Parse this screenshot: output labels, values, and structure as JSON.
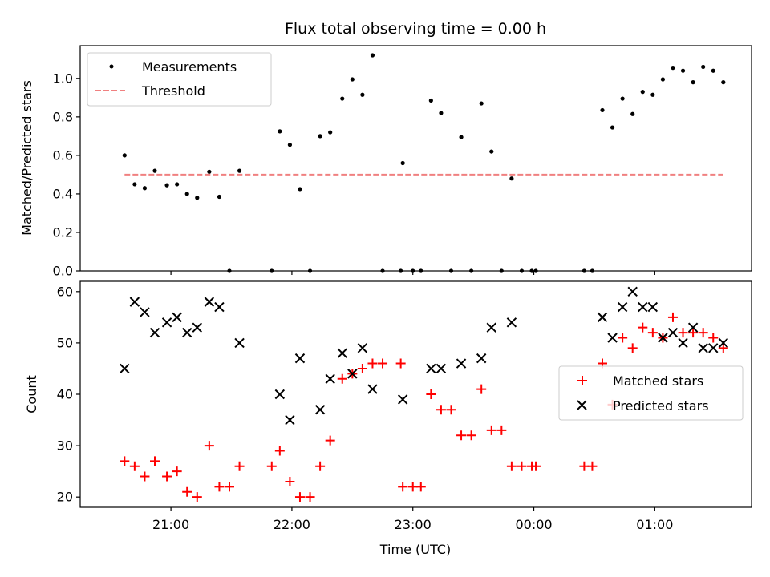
{
  "chart_data": [
    {
      "type": "scatter",
      "title": "Flux total observing time = 0.00 h",
      "xlabel": "",
      "ylabel": "Matched/Predicted stars",
      "ylim": [
        0,
        1.17
      ],
      "yticks": [
        "0.0",
        "0.2",
        "0.4",
        "0.6",
        "0.8",
        "1.0"
      ],
      "grid": false,
      "legend": "top-left",
      "series": [
        {
          "name": "Measurements",
          "marker": "dot",
          "color": "#000000",
          "points": [
            [
              "20:37",
              0.6
            ],
            [
              "20:42",
              0.45
            ],
            [
              "20:47",
              0.43
            ],
            [
              "20:52",
              0.52
            ],
            [
              "20:58",
              0.445
            ],
            [
              "21:03",
              0.45
            ],
            [
              "21:08",
              0.4
            ],
            [
              "21:13",
              0.38
            ],
            [
              "21:19",
              0.515
            ],
            [
              "21:24",
              0.385
            ],
            [
              "21:29",
              0.0
            ],
            [
              "21:34",
              0.52
            ],
            [
              "21:50",
              0.0
            ],
            [
              "21:54",
              0.725
            ],
            [
              "21:59",
              0.655
            ],
            [
              "22:04",
              0.425
            ],
            [
              "22:09",
              0.0
            ],
            [
              "22:14",
              0.7
            ],
            [
              "22:19",
              0.72
            ],
            [
              "22:25",
              0.895
            ],
            [
              "22:30",
              0.995
            ],
            [
              "22:35",
              0.915
            ],
            [
              "22:40",
              1.12
            ],
            [
              "22:45",
              0.0
            ],
            [
              "22:54",
              0.0
            ],
            [
              "22:55",
              0.56
            ],
            [
              "23:00",
              0.0
            ],
            [
              "23:04",
              0.0
            ],
            [
              "23:09",
              0.885
            ],
            [
              "23:14",
              0.82
            ],
            [
              "23:19",
              0.0
            ],
            [
              "23:24",
              0.695
            ],
            [
              "23:29",
              0.0
            ],
            [
              "23:34",
              0.87
            ],
            [
              "23:39",
              0.62
            ],
            [
              "23:44",
              0.0
            ],
            [
              "23:49",
              0.48
            ],
            [
              "23:54",
              0.0
            ],
            [
              "23:59",
              0.0
            ],
            [
              "00:01",
              0.0
            ],
            [
              "00:25",
              0.0
            ],
            [
              "00:29",
              0.0
            ],
            [
              "00:34",
              0.835
            ],
            [
              "00:39",
              0.745
            ],
            [
              "00:44",
              0.895
            ],
            [
              "00:49",
              0.815
            ],
            [
              "00:54",
              0.93
            ],
            [
              "00:59",
              0.915
            ],
            [
              "01:04",
              0.995
            ],
            [
              "01:09",
              1.055
            ],
            [
              "01:14",
              1.04
            ],
            [
              "01:19",
              0.98
            ],
            [
              "01:24",
              1.06
            ],
            [
              "01:29",
              1.04
            ],
            [
              "01:34",
              0.98
            ]
          ]
        },
        {
          "name": "Threshold",
          "marker": "dashed-line",
          "color": "#f08080",
          "points": [
            [
              "20:37",
              0.5
            ],
            [
              "01:34",
              0.5
            ]
          ]
        }
      ]
    },
    {
      "type": "scatter",
      "title": "",
      "xlabel": "Time (UTC)",
      "ylabel": "Count",
      "ylim": [
        18,
        62
      ],
      "yticks": [
        "20",
        "30",
        "40",
        "50",
        "60"
      ],
      "xticks": [
        "21:00",
        "22:00",
        "23:00",
        "00:00",
        "01:00"
      ],
      "grid": false,
      "legend": "center-right",
      "series": [
        {
          "name": "Matched stars",
          "marker": "plus",
          "color": "#ff0000",
          "points": [
            [
              "20:37",
              27
            ],
            [
              "20:42",
              26
            ],
            [
              "20:47",
              24
            ],
            [
              "20:52",
              27
            ],
            [
              "20:58",
              24
            ],
            [
              "21:03",
              25
            ],
            [
              "21:08",
              21
            ],
            [
              "21:13",
              20
            ],
            [
              "21:19",
              30
            ],
            [
              "21:24",
              22
            ],
            [
              "21:29",
              22
            ],
            [
              "21:34",
              26
            ],
            [
              "21:50",
              26
            ],
            [
              "21:54",
              29
            ],
            [
              "21:59",
              23
            ],
            [
              "22:04",
              20
            ],
            [
              "22:09",
              20
            ],
            [
              "22:14",
              26
            ],
            [
              "22:19",
              31
            ],
            [
              "22:25",
              43
            ],
            [
              "22:30",
              44
            ],
            [
              "22:35",
              45
            ],
            [
              "22:40",
              46
            ],
            [
              "22:45",
              46
            ],
            [
              "22:54",
              46
            ],
            [
              "22:55",
              22
            ],
            [
              "23:00",
              22
            ],
            [
              "23:04",
              22
            ],
            [
              "23:09",
              40
            ],
            [
              "23:14",
              37
            ],
            [
              "23:19",
              37
            ],
            [
              "23:24",
              32
            ],
            [
              "23:29",
              32
            ],
            [
              "23:34",
              41
            ],
            [
              "23:39",
              33
            ],
            [
              "23:44",
              33
            ],
            [
              "23:49",
              26
            ],
            [
              "23:54",
              26
            ],
            [
              "23:59",
              26
            ],
            [
              "00:01",
              26
            ],
            [
              "00:25",
              26
            ],
            [
              "00:29",
              26
            ],
            [
              "00:34",
              46
            ],
            [
              "00:39",
              38
            ],
            [
              "00:44",
              51
            ],
            [
              "00:49",
              49
            ],
            [
              "00:54",
              53
            ],
            [
              "00:59",
              52
            ],
            [
              "01:04",
              51
            ],
            [
              "01:09",
              55
            ],
            [
              "01:14",
              52
            ],
            [
              "01:19",
              52
            ],
            [
              "01:24",
              52
            ],
            [
              "01:29",
              51
            ],
            [
              "01:34",
              49
            ]
          ]
        },
        {
          "name": "Predicted stars",
          "marker": "x",
          "color": "#000000",
          "points": [
            [
              "20:37",
              45
            ],
            [
              "20:42",
              58
            ],
            [
              "20:47",
              56
            ],
            [
              "20:52",
              52
            ],
            [
              "20:58",
              54
            ],
            [
              "21:03",
              55
            ],
            [
              "21:08",
              52
            ],
            [
              "21:13",
              53
            ],
            [
              "21:19",
              58
            ],
            [
              "21:24",
              57
            ],
            [
              "21:34",
              50
            ],
            [
              "21:54",
              40
            ],
            [
              "21:59",
              35
            ],
            [
              "22:04",
              47
            ],
            [
              "22:14",
              37
            ],
            [
              "22:19",
              43
            ],
            [
              "22:25",
              48
            ],
            [
              "22:30",
              44
            ],
            [
              "22:35",
              49
            ],
            [
              "22:40",
              41
            ],
            [
              "22:55",
              39
            ],
            [
              "23:09",
              45
            ],
            [
              "23:14",
              45
            ],
            [
              "23:24",
              46
            ],
            [
              "23:34",
              47
            ],
            [
              "23:39",
              53
            ],
            [
              "23:49",
              54
            ],
            [
              "00:34",
              55
            ],
            [
              "00:39",
              51
            ],
            [
              "00:44",
              57
            ],
            [
              "00:49",
              60
            ],
            [
              "00:54",
              57
            ],
            [
              "00:59",
              57
            ],
            [
              "01:04",
              51
            ],
            [
              "01:09",
              52
            ],
            [
              "01:14",
              50
            ],
            [
              "01:19",
              53
            ],
            [
              "01:24",
              49
            ],
            [
              "01:29",
              49
            ],
            [
              "01:34",
              50
            ]
          ]
        }
      ]
    }
  ]
}
